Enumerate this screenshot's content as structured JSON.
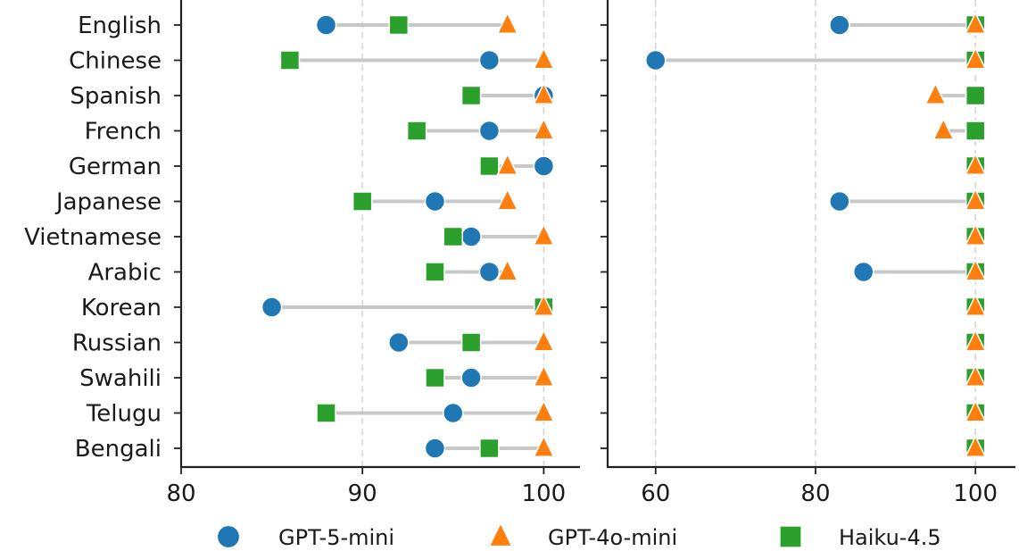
{
  "chart_data": {
    "type": "dumbbell",
    "categories": [
      "English",
      "Chinese",
      "Spanish",
      "French",
      "German",
      "Japanese",
      "Vietnamese",
      "Arabic",
      "Korean",
      "Russian",
      "Swahili",
      "Telugu",
      "Bengali"
    ],
    "series_styles": [
      {
        "name": "GPT-5-mini",
        "marker": "circle",
        "color": "#1f77b4"
      },
      {
        "name": "GPT-4o-mini",
        "marker": "triangle",
        "color": "#ff7f0e"
      },
      {
        "name": "Haiku-4.5",
        "marker": "square",
        "color": "#2ca02c"
      }
    ],
    "legend_position": "bottom",
    "grid": "vertical dashed",
    "panels": [
      {
        "xlim": [
          80,
          102
        ],
        "xticks": [
          80,
          90,
          100
        ],
        "series": [
          {
            "name": "GPT-5-mini",
            "values": [
              88,
              97,
              100,
              97,
              100,
              94,
              96,
              97,
              85,
              92,
              96,
              95,
              94
            ]
          },
          {
            "name": "GPT-4o-mini",
            "values": [
              98,
              100,
              100,
              100,
              98,
              98,
              100,
              98,
              100,
              100,
              100,
              100,
              100
            ]
          },
          {
            "name": "Haiku-4.5",
            "values": [
              92,
              86,
              96,
              93,
              97,
              90,
              95,
              94,
              100,
              96,
              94,
              88,
              97
            ]
          }
        ]
      },
      {
        "xlim": [
          54,
          105
        ],
        "xticks": [
          60,
          80,
          100
        ],
        "series": [
          {
            "name": "GPT-5-mini",
            "values": [
              83,
              60,
              100,
              100,
              100,
              83,
              100,
              86,
              100,
              100,
              100,
              100,
              100
            ]
          },
          {
            "name": "GPT-4o-mini",
            "values": [
              100,
              100,
              95,
              96,
              100,
              100,
              100,
              100,
              100,
              100,
              100,
              100,
              100
            ]
          },
          {
            "name": "Haiku-4.5",
            "values": [
              100,
              100,
              100,
              100,
              100,
              100,
              100,
              100,
              100,
              100,
              100,
              100,
              100
            ]
          }
        ]
      }
    ]
  }
}
